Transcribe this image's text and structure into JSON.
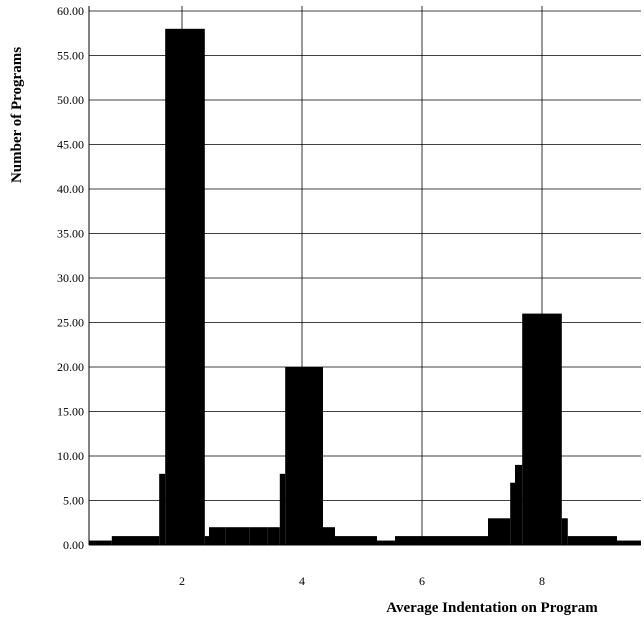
{
  "chart_data": {
    "type": "bar",
    "title": "",
    "xlabel": "Average Indentation on Program",
    "ylabel": "Number of Programs",
    "xlim": [
      0.45,
      9.65
    ],
    "ylim": [
      0,
      60
    ],
    "x_ticks": [
      2,
      4,
      6,
      8
    ],
    "x_tick_labels": [
      "2",
      "4",
      "6",
      "8"
    ],
    "y_ticks": [
      0,
      5,
      10,
      15,
      20,
      25,
      30,
      35,
      40,
      45,
      50,
      55,
      60
    ],
    "y_tick_labels": [
      "0.00",
      "5.00",
      "10.00",
      "15.00",
      "20.00",
      "25.00",
      "30.00",
      "35.00",
      "40.00",
      "45.00",
      "50.00",
      "55.00",
      "60.00"
    ],
    "grid": true,
    "bar_color": "#000000",
    "bins": [
      {
        "x0": 0.45,
        "x1": 0.83,
        "y": 0.5
      },
      {
        "x0": 0.83,
        "x1": 1.25,
        "y": 1
      },
      {
        "x0": 1.25,
        "x1": 1.62,
        "y": 1
      },
      {
        "x0": 1.62,
        "x1": 1.72,
        "y": 8
      },
      {
        "x0": 1.72,
        "x1": 2.38,
        "y": 58
      },
      {
        "x0": 2.38,
        "x1": 2.45,
        "y": 1
      },
      {
        "x0": 2.45,
        "x1": 2.72,
        "y": 2
      },
      {
        "x0": 2.72,
        "x1": 3.12,
        "y": 2
      },
      {
        "x0": 3.12,
        "x1": 3.42,
        "y": 2
      },
      {
        "x0": 3.42,
        "x1": 3.63,
        "y": 2
      },
      {
        "x0": 3.63,
        "x1": 3.72,
        "y": 8
      },
      {
        "x0": 3.72,
        "x1": 4.35,
        "y": 20
      },
      {
        "x0": 4.35,
        "x1": 4.55,
        "y": 2
      },
      {
        "x0": 4.55,
        "x1": 5.25,
        "y": 1
      },
      {
        "x0": 5.25,
        "x1": 5.55,
        "y": 0.5
      },
      {
        "x0": 5.55,
        "x1": 7.1,
        "y": 1
      },
      {
        "x0": 7.1,
        "x1": 7.47,
        "y": 3
      },
      {
        "x0": 7.47,
        "x1": 7.55,
        "y": 7
      },
      {
        "x0": 7.55,
        "x1": 7.67,
        "y": 9
      },
      {
        "x0": 7.67,
        "x1": 8.33,
        "y": 26
      },
      {
        "x0": 8.33,
        "x1": 8.43,
        "y": 3
      },
      {
        "x0": 8.43,
        "x1": 8.9,
        "y": 1
      },
      {
        "x0": 8.9,
        "x1": 9.25,
        "y": 1
      },
      {
        "x0": 9.25,
        "x1": 9.65,
        "y": 0.5
      }
    ]
  }
}
